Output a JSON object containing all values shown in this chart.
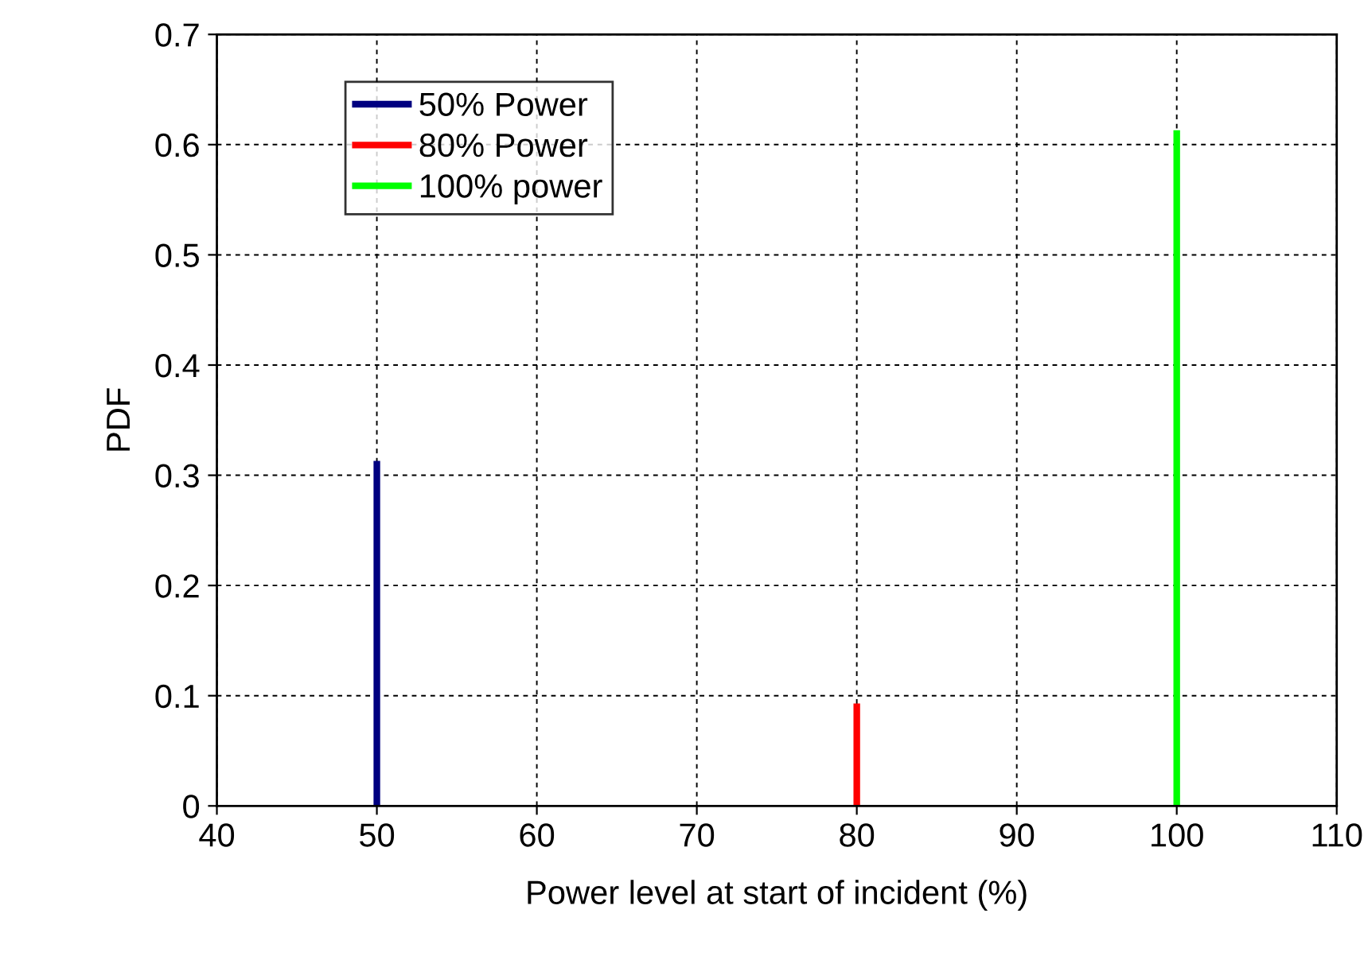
{
  "chart_data": {
    "type": "line",
    "xlabel": "Power level at start of incident (%)",
    "ylabel": "PDF",
    "series": [
      {
        "name": "50% Power",
        "color": "#000080",
        "x": [
          50,
          50
        ],
        "values": [
          0,
          0.31
        ]
      },
      {
        "name": "80% Power",
        "color": "#ff0000",
        "x": [
          80,
          80
        ],
        "values": [
          0,
          0.09
        ]
      },
      {
        "name": "100% power",
        "color": "#00ff00",
        "x": [
          100,
          100
        ],
        "values": [
          0,
          0.61
        ]
      }
    ],
    "xlim": [
      40,
      110
    ],
    "xticks": [
      40,
      50,
      60,
      70,
      80,
      90,
      100,
      110
    ],
    "ylim": [
      0,
      0.7
    ],
    "yticks": [
      0,
      0.1,
      0.2,
      0.3,
      0.4,
      0.5,
      0.6,
      0.7
    ],
    "grid": true,
    "legend": "top left",
    "marker": "none",
    "line_style": "solid"
  }
}
